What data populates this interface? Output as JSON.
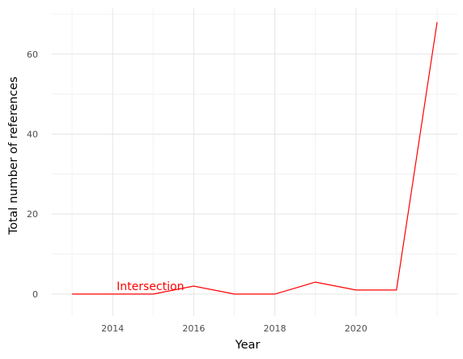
{
  "chart_data": {
    "type": "line",
    "title": "",
    "xlabel": "Year",
    "ylabel": "Total number of references",
    "x": [
      2013,
      2014,
      2015,
      2016,
      2017,
      2018,
      2019,
      2020,
      2021,
      2022
    ],
    "series": [
      {
        "name": "Intersection",
        "color": "#ff0000",
        "values": [
          0,
          0,
          0,
          2,
          0,
          0,
          3,
          1,
          1,
          68
        ]
      }
    ],
    "x_ticks": [
      2014,
      2016,
      2018,
      2020
    ],
    "y_ticks": [
      0,
      20,
      40,
      60
    ],
    "xlim": [
      2012.5,
      2022.5
    ],
    "ylim": [
      -5.5,
      71.5
    ],
    "grid": true,
    "legend": "none"
  }
}
